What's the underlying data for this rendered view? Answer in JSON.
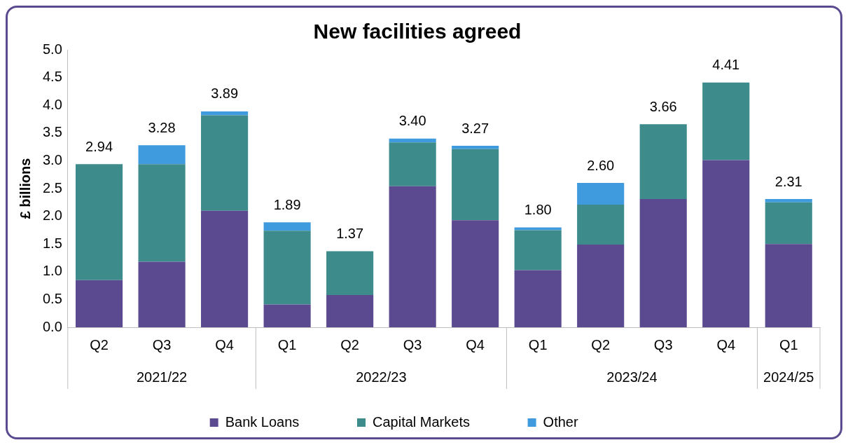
{
  "chart_data": {
    "type": "bar",
    "title": "New facilities agreed",
    "ylabel": "£ billions",
    "stacked": true,
    "grid": false,
    "legend": "bottom",
    "categories": [
      "Q2",
      "Q3",
      "Q4",
      "Q1",
      "Q2",
      "Q3",
      "Q4",
      "Q1",
      "Q2",
      "Q3",
      "Q4",
      "Q1"
    ],
    "series": [
      {
        "name": "Bank Loans",
        "color": "#5b4a8f",
        "values": [
          0.85,
          1.18,
          2.1,
          0.41,
          0.58,
          2.54,
          1.93,
          1.03,
          1.49,
          2.31,
          3.01,
          1.5
        ]
      },
      {
        "name": "Capital Markets",
        "color": "#3d8b8b",
        "values": [
          2.09,
          1.76,
          1.72,
          1.33,
          0.79,
          0.79,
          1.28,
          0.72,
          0.72,
          1.35,
          1.4,
          0.75
        ]
      },
      {
        "name": "Other",
        "color": "#3f9bdd",
        "values": [
          0,
          0.34,
          0.07,
          0.15,
          0,
          0.07,
          0.06,
          0.05,
          0.39,
          0,
          0,
          0.06
        ]
      }
    ],
    "totals": [
      "2.94",
      "3.28",
      "3.89",
      "1.89",
      "1.37",
      "3.40",
      "3.27",
      "1.80",
      "2.60",
      "3.66",
      "4.41",
      "2.31"
    ],
    "annotations": [
      "2021/22",
      "2022/23",
      "2023/24",
      "2024/25"
    ],
    "ylim": [
      0,
      5
    ],
    "yticks": [
      {
        "value": 0,
        "label": "0.0"
      },
      0.5,
      {
        "value": 1,
        "label": "1.0"
      },
      1.5,
      {
        "value": 2,
        "label": "2.0"
      },
      2.5,
      {
        "value": 3,
        "label": "3.0"
      },
      3.5,
      {
        "value": 4,
        "label": "4.0"
      },
      4.5,
      {
        "value": 5,
        "label": "5.0"
      }
    ]
  }
}
